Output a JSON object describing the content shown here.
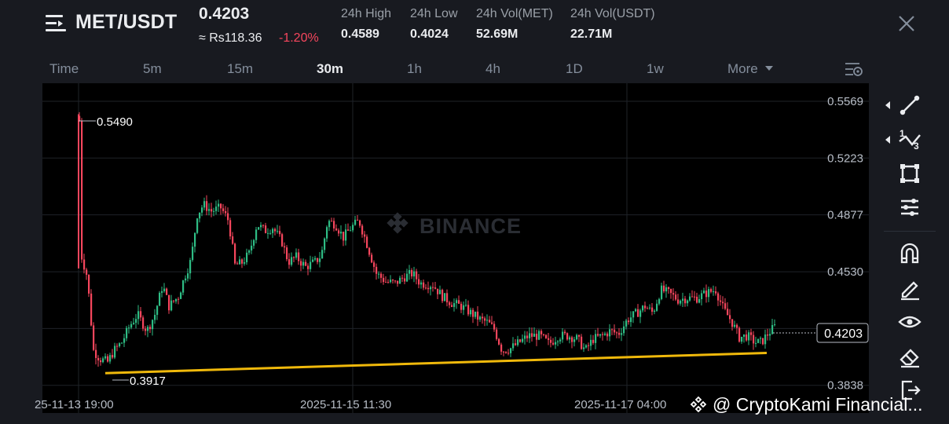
{
  "header": {
    "pair": "MET/USDT",
    "last_price": "0.4203",
    "fiat_price": "≈ Rs118.36",
    "change": "-1.20%",
    "stats": [
      {
        "label": "24h High",
        "value": "0.4589"
      },
      {
        "label": "24h Low",
        "value": "0.4024"
      },
      {
        "label": "24h Vol(MET)",
        "value": "52.69M"
      },
      {
        "label": "24h Vol(USDT)",
        "value": "22.71M"
      }
    ]
  },
  "timeframes": {
    "items": [
      "Time",
      "5m",
      "15m",
      "30m",
      "1h",
      "4h",
      "1D",
      "1w",
      "More"
    ],
    "active": "30m"
  },
  "chart_data": {
    "type": "candlestick",
    "watermark": "BINANCE",
    "y_ticks": [
      "0.5569",
      "0.5223",
      "0.4877",
      "0.4530",
      "0.3838"
    ],
    "x_ticks": [
      "25-11-13 19:00",
      "2025-11-15 11:30",
      "2025-11-17 04:00"
    ],
    "last_price_label": "0.4203",
    "high_marker": "0.5490",
    "low_marker": "0.3917",
    "ylim": [
      0.375,
      0.575
    ],
    "trendline": {
      "from": 0.3917,
      "to": 0.404,
      "color": "#f0b90b"
    },
    "colors": {
      "up": "#2ebd85",
      "down": "#f6465d"
    }
  },
  "footer": {
    "watermark_text": "@ CryptoKami Financial..."
  }
}
